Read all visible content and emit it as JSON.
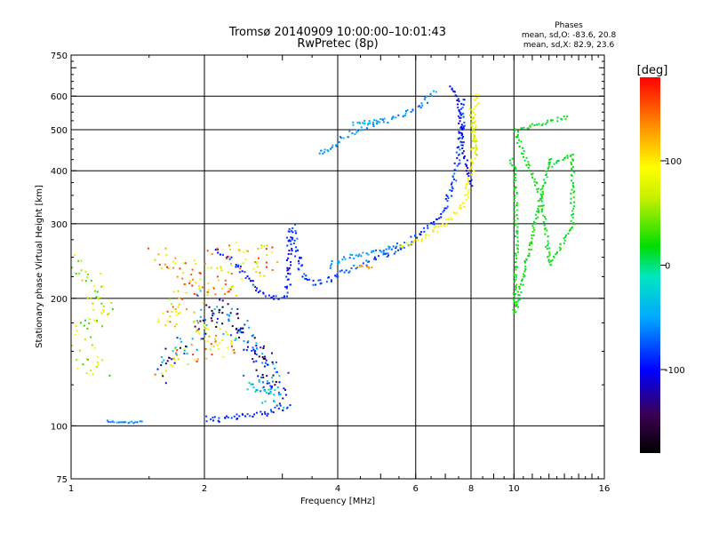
{
  "chart_data": {
    "type": "scatter",
    "title": "Tromsø 20140909 10:00:00–10:01:43",
    "subtitle": "RwPretec (8p)",
    "xlabel": "Frequency [MHz]",
    "ylabel": "Stationary phase Virtual Height [km]",
    "x_scale": "log",
    "y_scale": "log",
    "xlim": [
      1,
      16
    ],
    "ylim": [
      75,
      750
    ],
    "x_ticks": [
      1,
      2,
      4,
      6,
      8,
      10,
      16
    ],
    "y_ticks": [
      75,
      100,
      200,
      300,
      400,
      500,
      600,
      750
    ],
    "grid": true,
    "phases": {
      "title": "Phases",
      "line_o": "mean, sd,O: -83.6, 20.8",
      "line_x": "mean, sd,X:  82.9, 23.6"
    },
    "colorbar": {
      "label": "[deg]",
      "range": [
        -180,
        180
      ],
      "ticks": [
        100,
        0,
        -100
      ],
      "tick_labels": [
        "100",
        "0",
        "-100"
      ]
    },
    "series": [
      {
        "trace": [
          [
            2.0,
            105
          ],
          [
            2.1,
            104
          ],
          [
            2.3,
            105
          ],
          [
            2.5,
            106
          ],
          [
            2.7,
            108
          ],
          [
            2.9,
            110
          ],
          [
            3.1,
            112
          ]
        ],
        "phase": -110,
        "spread": 4
      },
      {
        "trace": [
          [
            1.2,
            103
          ],
          [
            1.3,
            102
          ],
          [
            1.45,
            103
          ]
        ],
        "phase": -90,
        "spread": 1
      },
      {
        "trace": [
          [
            2.1,
            260
          ],
          [
            2.3,
            245
          ],
          [
            2.5,
            225
          ],
          [
            2.7,
            205
          ],
          [
            2.9,
            200
          ],
          [
            3.05,
            205
          ],
          [
            3.1,
            230
          ],
          [
            3.1,
            260
          ],
          [
            3.1,
            295
          ]
        ],
        "phase": -115,
        "spread": 3
      },
      {
        "trace": [
          [
            3.15,
            300
          ],
          [
            3.2,
            270
          ],
          [
            3.3,
            230
          ],
          [
            3.5,
            218
          ],
          [
            3.8,
            222
          ],
          [
            4.2,
            235
          ],
          [
            4.8,
            248
          ],
          [
            5.5,
            262
          ],
          [
            6.0,
            280
          ],
          [
            6.6,
            305
          ],
          [
            7.0,
            330
          ],
          [
            7.3,
            380
          ],
          [
            7.5,
            450
          ],
          [
            7.6,
            520
          ],
          [
            7.6,
            600
          ]
        ],
        "phase": -105,
        "spread": 3
      },
      {
        "trace": [
          [
            3.8,
            240
          ],
          [
            4.4,
            255
          ],
          [
            5.0,
            260
          ],
          [
            5.6,
            270
          ]
        ],
        "phase": -85,
        "spread": 3
      },
      {
        "trace": [
          [
            4.4,
            240
          ],
          [
            4.6,
            238
          ],
          [
            4.8,
            240
          ]
        ],
        "phase": 130,
        "spread": 2
      },
      {
        "trace": [
          [
            5.5,
            265
          ],
          [
            6.0,
            275
          ],
          [
            6.6,
            290
          ],
          [
            7.2,
            310
          ],
          [
            7.7,
            340
          ],
          [
            8.0,
            400
          ],
          [
            8.1,
            470
          ],
          [
            8.15,
            540
          ],
          [
            8.2,
            620
          ]
        ],
        "phase": 95,
        "spread": 3
      },
      {
        "trace": [
          [
            3.6,
            440
          ],
          [
            3.9,
            460
          ],
          [
            4.2,
            490
          ],
          [
            4.6,
            510
          ],
          [
            5.0,
            525
          ],
          [
            5.6,
            540
          ],
          [
            6.2,
            580
          ],
          [
            6.6,
            620
          ]
        ],
        "phase": -85,
        "spread": 3
      },
      {
        "trace": [
          [
            4.3,
            520
          ],
          [
            4.7,
            525
          ],
          [
            5.1,
            530
          ]
        ],
        "phase": -70,
        "spread": 2
      },
      {
        "trace": [
          [
            7.2,
            640
          ],
          [
            7.4,
            600
          ],
          [
            7.5,
            540
          ],
          [
            7.6,
            470
          ],
          [
            7.8,
            410
          ],
          [
            8.0,
            370
          ]
        ],
        "phase": -120,
        "spread": 2
      },
      {
        "trace": [
          [
            7.9,
            560
          ],
          [
            8.0,
            520
          ],
          [
            8.1,
            470
          ],
          [
            8.2,
            430
          ]
        ],
        "phase": 60,
        "spread": 2
      },
      {
        "trace": [
          [
            1.0,
            240
          ],
          [
            1.05,
            230
          ],
          [
            1.1,
            220
          ],
          [
            1.15,
            210
          ],
          [
            1.2,
            200
          ],
          [
            1.15,
            190
          ],
          [
            1.1,
            175
          ],
          [
            1.05,
            160
          ],
          [
            1.1,
            145
          ],
          [
            1.15,
            130
          ]
        ],
        "phase": 60,
        "spread": 14
      },
      {
        "trace": [
          [
            1.55,
            255
          ],
          [
            1.7,
            240
          ],
          [
            1.9,
            225
          ],
          [
            2.1,
            250
          ],
          [
            2.4,
            255
          ],
          [
            2.8,
            250
          ],
          [
            2.6,
            235
          ],
          [
            2.2,
            215
          ],
          [
            1.8,
            205
          ],
          [
            1.6,
            190
          ],
          [
            1.75,
            180
          ],
          [
            2.0,
            170
          ],
          [
            2.3,
            160
          ],
          [
            1.9,
            150
          ],
          [
            1.6,
            140
          ]
        ],
        "phase": 110,
        "spread": 14
      },
      {
        "trace": [
          [
            2.0,
            200
          ],
          [
            2.2,
            185
          ],
          [
            2.4,
            170
          ],
          [
            2.6,
            150
          ],
          [
            2.8,
            135
          ],
          [
            3.0,
            125
          ],
          [
            2.9,
            120
          ],
          [
            2.7,
            140
          ],
          [
            2.5,
            160
          ],
          [
            2.3,
            175
          ],
          [
            2.1,
            190
          ],
          [
            1.9,
            160
          ],
          [
            1.7,
            150
          ],
          [
            1.6,
            130
          ]
        ],
        "phase": -115,
        "spread": 12
      },
      {
        "trace": [
          [
            2.6,
            130
          ],
          [
            2.8,
            125
          ],
          [
            3.0,
            118
          ],
          [
            2.9,
            115
          ],
          [
            2.7,
            122
          ],
          [
            2.5,
            128
          ]
        ],
        "phase": -75,
        "spread": 10
      },
      {
        "trace": [
          [
            9.8,
            430
          ],
          [
            10.0,
            400
          ],
          [
            10.1,
            280
          ],
          [
            10.0,
            210
          ],
          [
            10.0,
            185
          ],
          [
            12.0,
            430
          ],
          [
            12.0,
            410
          ],
          [
            13.5,
            440
          ],
          [
            13.5,
            300
          ],
          [
            12.0,
            240
          ],
          [
            11.5,
            345
          ],
          [
            10.0,
            500
          ],
          [
            13.3,
            540
          ]
        ],
        "phase": 0,
        "spread": 2
      }
    ]
  }
}
